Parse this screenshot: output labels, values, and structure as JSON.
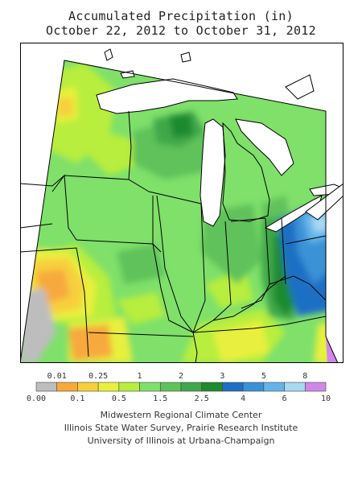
{
  "title": "Accumulated Precipitation (in)",
  "subtitle": "October 22, 2012 to October 31, 2012",
  "legend": {
    "colors": [
      "#bdbdbd",
      "#f7a93c",
      "#f7cf3e",
      "#e8f03e",
      "#b8ee3e",
      "#7fe06a",
      "#5ec25a",
      "#3fa84a",
      "#1f8a2e",
      "#1f6fc4",
      "#3a92d6",
      "#64b4e8",
      "#a8d8f2",
      "#cf88ea"
    ],
    "top_labels": [
      {
        "text": "0.01",
        "boundary": 1
      },
      {
        "text": "0.25",
        "boundary": 3
      },
      {
        "text": "1",
        "boundary": 5
      },
      {
        "text": "2",
        "boundary": 7
      },
      {
        "text": "3",
        "boundary": 9
      },
      {
        "text": "5",
        "boundary": 11
      },
      {
        "text": "8",
        "boundary": 13
      }
    ],
    "bottom_labels": [
      {
        "text": "0.00",
        "boundary": 0
      },
      {
        "text": "0.1",
        "boundary": 2
      },
      {
        "text": "0.5",
        "boundary": 4
      },
      {
        "text": "1.5",
        "boundary": 6
      },
      {
        "text": "2.5",
        "boundary": 8
      },
      {
        "text": "4",
        "boundary": 10
      },
      {
        "text": "6",
        "boundary": 12
      },
      {
        "text": "10",
        "boundary": 14
      }
    ]
  },
  "credits": [
    "Midwestern Regional Climate Center",
    "Illinois State Water Survey, Prairie Research Institute",
    "University of Illinois at Urbana-Champaign"
  ]
}
